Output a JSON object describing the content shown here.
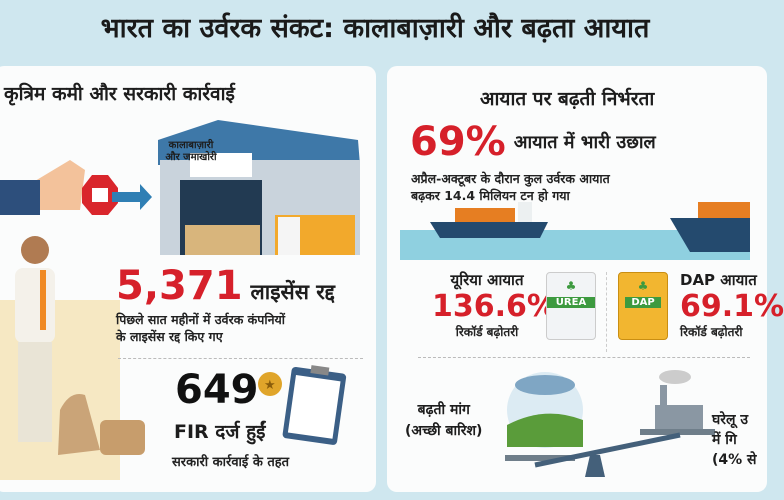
{
  "title": "भारत का उर्वरक संकट: कालाबाज़ारी और बढ़ता आयात",
  "left": {
    "heading": "कृत्रिम कमी और सरकारी कार्रवाई",
    "warehouse_sign": [
      "कालाबाज़ारी",
      "और जमाखोरी"
    ],
    "licenses": {
      "value": "5,371",
      "label": "लाइसेंस रद्द",
      "desc": [
        "पिछले सात महीनों में उर्वरक कंपनियों",
        "के लाइसेंस रद्द किए गए"
      ]
    },
    "fir": {
      "value": "649",
      "label": "FIR दर्ज हुईं",
      "desc": "सरकारी कार्रवाई के तहत"
    }
  },
  "right": {
    "heading": "आयात पर बढ़ती निर्भरता",
    "import_jump": {
      "value": "69%",
      "label": "आयात में भारी उछाल",
      "desc": [
        "अप्रैल-अक्टूबर के दौरान कुल उर्वरक आयात",
        "बढ़कर 14.4 मिलियन टन हो गया"
      ]
    },
    "urea": {
      "label": "यूरिया आयात",
      "value": "136.6%",
      "desc": "रिकॉर्ड बढ़ोतरी",
      "bag_text": "UREA"
    },
    "dap": {
      "label": "DAP आयात",
      "value": "69.1%",
      "desc": "रिकॉर्ड बढ़ोतरी",
      "bag_text": "DAP"
    },
    "demand": [
      "बढ़ती मांग",
      "(अच्छी बारिश)"
    ],
    "domestic": [
      "घरेलू उ",
      "में गि",
      "(4% से"
    ]
  },
  "colors": {
    "accent_red": "#d6202a",
    "background": "#cfe7ef",
    "urea_green": "#3d9a3f",
    "dap_yellow": "#f2b630"
  }
}
